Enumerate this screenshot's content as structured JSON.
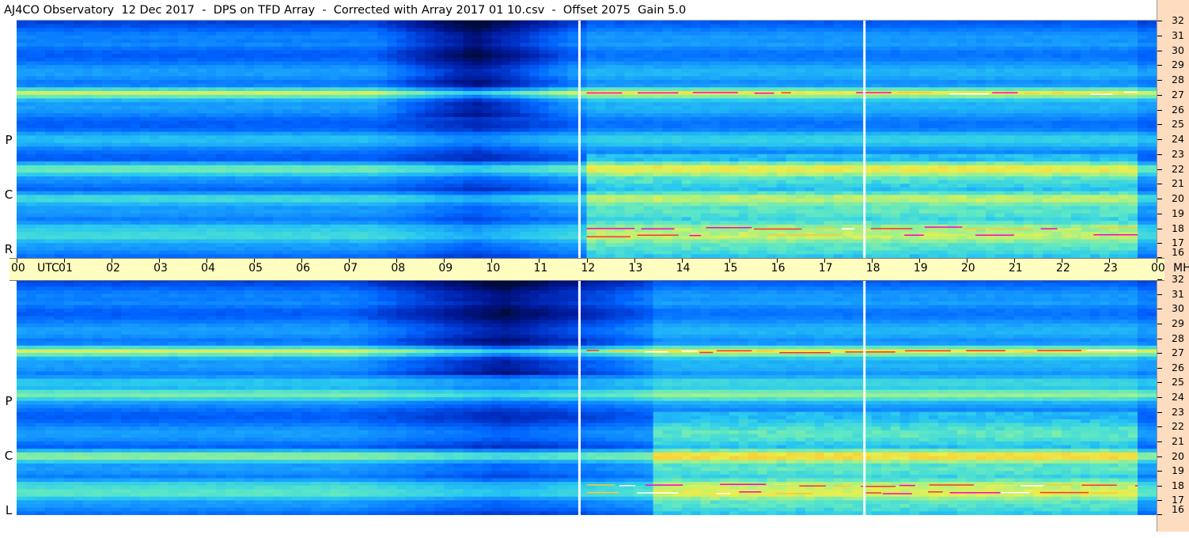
{
  "title": "AJ4CO Observatory  12 Dec 2017  -  DPS on TFD Array  -  Corrected with Array 2017 01 10.csv  -  Offset 2075  Gain 5.0",
  "panels": [
    {
      "id": "rcp",
      "label": [
        "R",
        "C",
        "P"
      ]
    },
    {
      "id": "lcp",
      "label": [
        "L",
        "C",
        "P"
      ]
    }
  ],
  "time_axis": {
    "labels": [
      "00",
      "UTC",
      "01",
      "02",
      "03",
      "04",
      "05",
      "06",
      "07",
      "08",
      "09",
      "10",
      "11",
      "12",
      "13",
      "14",
      "15",
      "16",
      "17",
      "18",
      "19",
      "20",
      "21",
      "22",
      "23",
      "00",
      "MHz"
    ]
  },
  "freq_axis": {
    "ticks": [
      "32",
      "31",
      "30",
      "29",
      "28",
      "27",
      "26",
      "25",
      "24",
      "23",
      "22",
      "21",
      "20",
      "19",
      "18",
      "17",
      "16"
    ]
  },
  "colors": {
    "background": "#ffffff",
    "time_axis_bg": "#fffec0",
    "right_strip_bg": "#fddcc0",
    "colormap": [
      "#000a3c",
      "#00148c",
      "#0032c8",
      "#0064ff",
      "#1496ff",
      "#28c8f0",
      "#5ae6c8",
      "#a0f08c",
      "#e6f050",
      "#ffc832",
      "#ff3232",
      "#ff00c8"
    ]
  },
  "chart_data": {
    "type": "heatmap",
    "title": "AJ4CO Observatory  12 Dec 2017  -  DPS on TFD Array  -  Corrected with Array 2017 01 10.csv  -  Offset 2075  Gain 5.0",
    "x_unit": "UTC",
    "y_unit": "MHz",
    "xlim": [
      0,
      24
    ],
    "ylim": [
      16,
      32
    ],
    "series": [
      {
        "name": "RCP",
        "bands_mhz": [
          {
            "freq": 27.1,
            "level": 0.72,
            "interference": true
          },
          {
            "freq": 22.0,
            "level": 0.62
          },
          {
            "freq": 20.0,
            "level": 0.55
          },
          {
            "freq": 24.0,
            "level": 0.45
          },
          {
            "freq": 17.5,
            "level": 0.55,
            "interference": true
          },
          {
            "freq": 18.0,
            "level": 0.5,
            "interference": true
          }
        ],
        "notes_hours": [
          {
            "from": 7.5,
            "to": 11.8,
            "effect": "darker (quiet)"
          },
          {
            "from": 12.0,
            "to": 23.5,
            "effect": "brighter (active)"
          }
        ],
        "white_marker_hours": [
          11.85,
          17.85
        ]
      },
      {
        "name": "LCP",
        "bands_mhz": [
          {
            "freq": 27.1,
            "level": 0.72,
            "interference": true
          },
          {
            "freq": 24.2,
            "level": 0.62
          },
          {
            "freq": 20.0,
            "level": 0.68
          },
          {
            "freq": 25.0,
            "level": 0.5
          },
          {
            "freq": 17.5,
            "level": 0.6,
            "interference": true
          },
          {
            "freq": 18.0,
            "level": 0.55,
            "interference": true
          }
        ],
        "notes_hours": [
          {
            "from": 7.0,
            "to": 13.5,
            "effect": "darker (quiet)"
          },
          {
            "from": 13.5,
            "to": 23.5,
            "effect": "brighter (active)"
          }
        ],
        "white_marker_hours": [
          11.85,
          17.85
        ]
      }
    ]
  }
}
